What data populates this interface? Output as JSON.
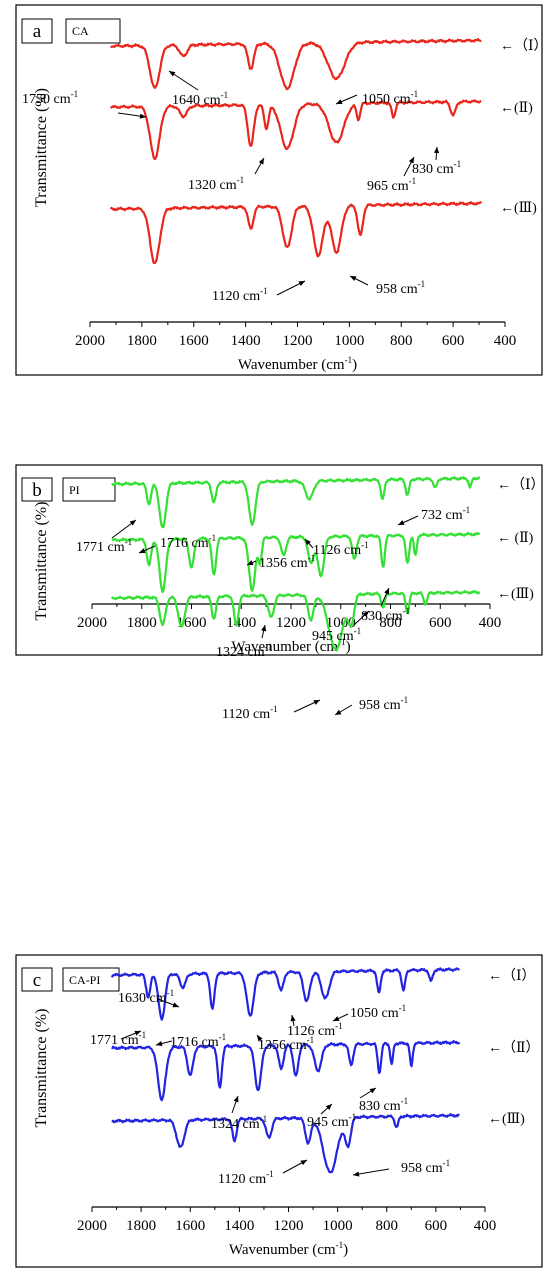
{
  "chart_data": [
    {
      "panel_letter": "a",
      "panel_tag": "CA",
      "type": "line",
      "xlabel": "Wavenumber",
      "xlabel_unit": "(cm",
      "ylabel": "Transmittance (%)",
      "xlim": [
        2000,
        400
      ],
      "xticks": [
        2000,
        1800,
        1600,
        1400,
        1200,
        1000,
        800,
        600,
        400
      ],
      "color": "#e8261c",
      "series_labels": [
        "←（Ⅰ）",
        "←(Ⅱ)",
        "←(Ⅲ)"
      ],
      "series": [
        {
          "name": "(Ⅰ)",
          "dips": [
            [
              1750,
              0.95,
              26
            ],
            [
              1640,
              0.25,
              20
            ],
            [
              1380,
              0.55,
              16
            ],
            [
              1240,
              1.0,
              38
            ],
            [
              1050,
              0.8,
              45
            ]
          ]
        },
        {
          "name": "(Ⅱ)",
          "dips": [
            [
              1750,
              1.0,
              26
            ],
            [
              1640,
              0.2,
              20
            ],
            [
              1380,
              0.8,
              16
            ],
            [
              1320,
              0.45,
              12
            ],
            [
              1240,
              0.85,
              35
            ],
            [
              1050,
              0.75,
              40
            ],
            [
              965,
              0.3,
              10
            ],
            [
              830,
              0.28,
              10
            ],
            [
              600,
              0.25,
              14
            ]
          ]
        },
        {
          "name": "(Ⅲ)",
          "dips": [
            [
              1750,
              1.0,
              26
            ],
            [
              1380,
              0.4,
              14
            ],
            [
              1240,
              0.75,
              24
            ],
            [
              1120,
              0.9,
              26
            ],
            [
              1050,
              0.85,
              26
            ],
            [
              958,
              0.55,
              14
            ],
            [
              470,
              0.6,
              6
            ]
          ]
        }
      ],
      "annotations": [
        "1750 cm",
        "1640 cm",
        "1050 cm",
        "965 cm",
        "830 cm",
        "1320 cm",
        "1120 cm",
        "958 cm"
      ]
    },
    {
      "panel_letter": "b",
      "panel_tag": "PI",
      "type": "line",
      "xlabel": "Wavenumber",
      "xlabel_unit": "(cm",
      "ylabel": "Transmittance (%)",
      "xlim": [
        2000,
        400
      ],
      "xticks": [
        2000,
        1800,
        1600,
        1400,
        1200,
        1000,
        800,
        600,
        400
      ],
      "color": "#34e034",
      "series_labels": [
        "←（Ⅰ）",
        "←  (Ⅱ)",
        "←(Ⅲ)"
      ],
      "series": [
        {
          "name": "(Ⅰ)",
          "dips": [
            [
              1771,
              0.45,
              12
            ],
            [
              1716,
              1.0,
              18
            ],
            [
              1510,
              0.45,
              12
            ],
            [
              1356,
              0.95,
              18
            ],
            [
              1126,
              0.4,
              22
            ],
            [
              832,
              0.45,
              10
            ],
            [
              732,
              0.35,
              10
            ],
            [
              620,
              0.2,
              10
            ],
            [
              480,
              0.2,
              8
            ]
          ]
        },
        {
          "name": "(Ⅱ)",
          "dips": [
            [
              1771,
              0.5,
              12
            ],
            [
              1716,
              1.0,
              18
            ],
            [
              1600,
              0.55,
              14
            ],
            [
              1510,
              0.7,
              12
            ],
            [
              1356,
              1.0,
              18
            ],
            [
              1324,
              0.45,
              10
            ],
            [
              1230,
              0.35,
              14
            ],
            [
              1120,
              0.5,
              16
            ],
            [
              1080,
              0.75,
              18
            ],
            [
              945,
              0.45,
              12
            ],
            [
              830,
              0.6,
              10
            ],
            [
              732,
              0.55,
              10
            ],
            [
              700,
              0.4,
              8
            ]
          ]
        },
        {
          "name": "(Ⅲ)",
          "dips": [
            [
              1716,
              0.5,
              16
            ],
            [
              1640,
              0.55,
              18
            ],
            [
              1510,
              0.4,
              12
            ],
            [
              1420,
              0.55,
              12
            ],
            [
              1280,
              0.4,
              16
            ],
            [
              1120,
              0.45,
              16
            ],
            [
              1020,
              1.0,
              40
            ],
            [
              958,
              0.5,
              16
            ],
            [
              830,
              0.25,
              10
            ],
            [
              732,
              0.35,
              10
            ],
            [
              660,
              0.2,
              10
            ]
          ]
        }
      ],
      "annotations": [
        "1771 cm",
        "1716 cm",
        "1356 cm",
        "1126 cm",
        "732 cm",
        "1324 cm",
        "945 cm",
        "830 cm",
        "1120 cm",
        "958 cm"
      ]
    },
    {
      "panel_letter": "c",
      "panel_tag": "CA-PI",
      "type": "line",
      "xlabel": "Wavenumber",
      "xlabel_unit": "(cm",
      "ylabel": "Transmittance (%)",
      "xlim": [
        2000,
        400
      ],
      "xticks": [
        2000,
        1800,
        1600,
        1400,
        1200,
        1000,
        800,
        600,
        400
      ],
      "color": "#2424e0",
      "series_labels": [
        "←（Ⅰ）",
        "←（Ⅱ）",
        "←(Ⅲ)"
      ],
      "series": [
        {
          "name": "(Ⅰ)",
          "dips": [
            [
              1771,
              0.5,
              12
            ],
            [
              1716,
              1.0,
              18
            ],
            [
              1630,
              0.3,
              16
            ],
            [
              1510,
              0.8,
              12
            ],
            [
              1356,
              0.95,
              20
            ],
            [
              1230,
              0.4,
              14
            ],
            [
              1126,
              0.65,
              18
            ],
            [
              1050,
              0.6,
              22
            ],
            [
              832,
              0.5,
              10
            ],
            [
              732,
              0.45,
              10
            ],
            [
              620,
              0.25,
              10
            ]
          ]
        },
        {
          "name": "(Ⅱ)",
          "dips": [
            [
              1716,
              1.0,
              22
            ],
            [
              1600,
              0.55,
              16
            ],
            [
              1480,
              0.8,
              12
            ],
            [
              1324,
              0.85,
              18
            ],
            [
              1230,
              0.45,
              14
            ],
            [
              1170,
              0.6,
              14
            ],
            [
              1080,
              0.5,
              20
            ],
            [
              945,
              0.4,
              12
            ],
            [
              830,
              0.55,
              10
            ],
            [
              780,
              0.4,
              8
            ],
            [
              700,
              0.45,
              8
            ]
          ]
        },
        {
          "name": "(Ⅲ)",
          "dips": [
            [
              1640,
              0.5,
              22
            ],
            [
              1420,
              0.4,
              12
            ],
            [
              1280,
              0.35,
              16
            ],
            [
              1120,
              0.45,
              16
            ],
            [
              1030,
              1.0,
              40
            ],
            [
              958,
              0.5,
              16
            ],
            [
              760,
              0.2,
              10
            ],
            [
              400,
              0.25,
              6
            ]
          ]
        }
      ],
      "annotations": [
        "1630 cm",
        "1771 cm",
        "1716 cm",
        "1356 cm",
        "1126 cm",
        "1050 cm",
        "1324 cm",
        "945 cm",
        "830 cm",
        "1120 cm",
        "958 cm"
      ]
    }
  ]
}
